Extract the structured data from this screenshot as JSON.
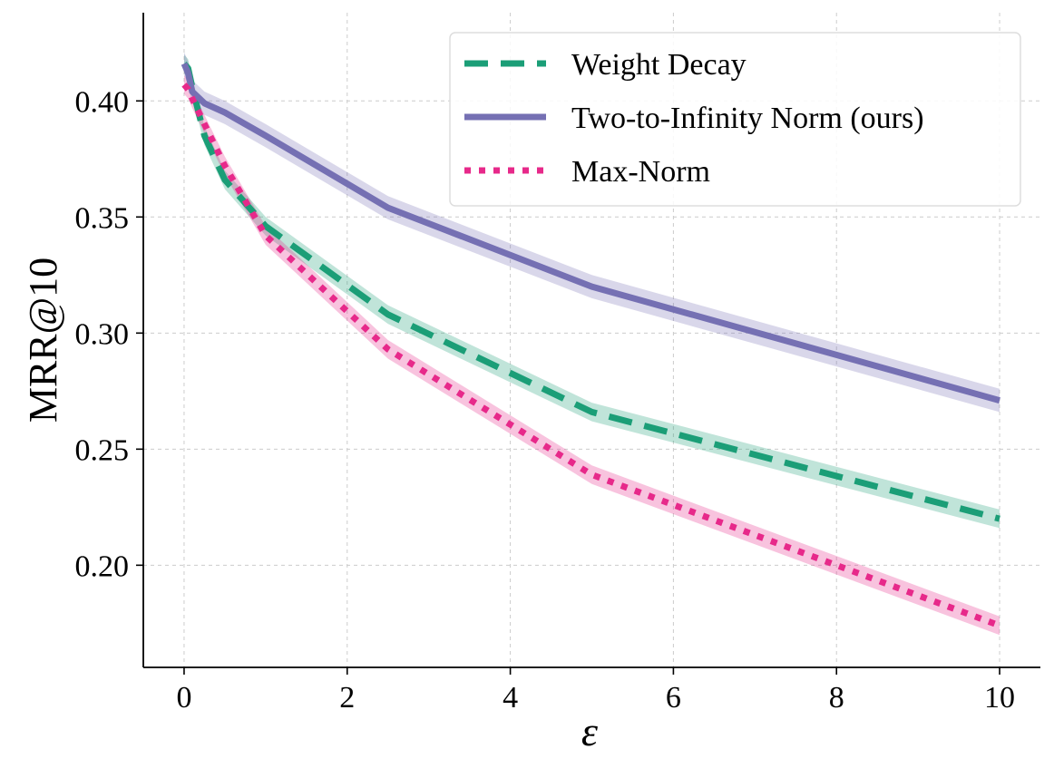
{
  "chart_data": {
    "type": "line",
    "xlabel": "ε",
    "ylabel": "MRR@10",
    "xlim": [
      -0.5,
      10.5
    ],
    "ylim": [
      0.156,
      0.438
    ],
    "xticks": [
      0,
      2,
      4,
      6,
      8,
      10
    ],
    "xtick_labels": [
      "0",
      "2",
      "4",
      "6",
      "8",
      "10"
    ],
    "yticks": [
      0.2,
      0.25,
      0.3,
      0.35,
      0.4
    ],
    "ytick_labels": [
      "0.20",
      "0.25",
      "0.30",
      "0.35",
      "0.40"
    ],
    "grid": true,
    "legend_position": "top-right",
    "series": [
      {
        "name": "Weight Decay",
        "color": "#1b9e77",
        "style": "dashed",
        "x": [
          0,
          0.05,
          0.1,
          0.25,
          0.5,
          1,
          2.5,
          5,
          10
        ],
        "y": [
          0.416,
          0.414,
          0.406,
          0.385,
          0.366,
          0.346,
          0.308,
          0.266,
          0.22
        ],
        "band": 0.004
      },
      {
        "name": "Two-to-Infinity Norm (ours)",
        "color": "#7570b3",
        "style": "solid",
        "x": [
          0,
          0.05,
          0.1,
          0.25,
          0.5,
          1,
          2.5,
          5,
          10
        ],
        "y": [
          0.416,
          0.412,
          0.404,
          0.399,
          0.395,
          0.385,
          0.354,
          0.32,
          0.271
        ],
        "band": 0.005
      },
      {
        "name": "Max-Norm",
        "color": "#e7298a",
        "style": "dotted",
        "x": [
          0,
          0.05,
          0.1,
          0.25,
          0.5,
          1,
          2.5,
          5,
          10
        ],
        "y": [
          0.407,
          0.405,
          0.401,
          0.39,
          0.372,
          0.342,
          0.293,
          0.239,
          0.174
        ],
        "band": 0.004
      }
    ]
  }
}
